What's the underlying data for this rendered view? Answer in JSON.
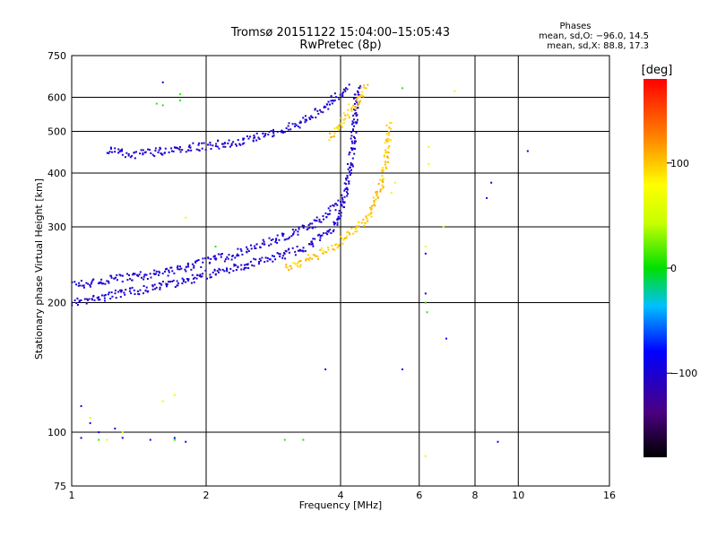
{
  "chart_data": {
    "type": "scatter",
    "title": "Tromsø 20151122 15:04:00–15:05:43",
    "subtitle": "RwPretec (8p)",
    "xlabel": "Frequency [MHz]",
    "ylabel": "Stationary phase Virtual Height [km]",
    "x_scale": "log",
    "y_scale": "log",
    "xlim": [
      1,
      16
    ],
    "ylim": [
      75,
      750
    ],
    "x_ticks": [
      1,
      2,
      4,
      6,
      8,
      10,
      16
    ],
    "x_tick_labels": [
      "1",
      "2",
      "4",
      "6",
      "8",
      "10",
      "16"
    ],
    "x_grid": [
      2,
      4,
      6,
      8,
      10
    ],
    "y_ticks": [
      75,
      100,
      200,
      300,
      400,
      500,
      600,
      750
    ],
    "y_tick_labels": [
      "75",
      "100",
      "200",
      "300",
      "400",
      "500",
      "600",
      "750"
    ],
    "y_grid": [
      100,
      200,
      300,
      400,
      500,
      600
    ],
    "grid": true,
    "stats": {
      "heading": "Phases",
      "line_o": "mean, sd,O: −96.0, 14.5",
      "line_x": "mean, sd,X:  88.8, 17.3"
    },
    "colorbar": {
      "label": "[deg]",
      "range": [
        -180,
        180
      ],
      "ticks": [
        100,
        0,
        -100
      ],
      "tick_labels": [
        "100",
        "0",
        "−100"
      ],
      "placement": "right"
    },
    "trace_groups": [
      {
        "mode": "O",
        "color_phase": -100,
        "points": [
          [
            1.0,
            200
          ],
          [
            1.1,
            203
          ],
          [
            1.2,
            207
          ],
          [
            1.3,
            210
          ],
          [
            1.4,
            213
          ],
          [
            1.5,
            216
          ],
          [
            1.6,
            219
          ],
          [
            1.7,
            222
          ],
          [
            1.8,
            225
          ],
          [
            1.9,
            228
          ],
          [
            2.0,
            232
          ],
          [
            2.2,
            237
          ],
          [
            2.4,
            242
          ],
          [
            2.6,
            248
          ],
          [
            2.8,
            254
          ],
          [
            3.0,
            259
          ],
          [
            3.2,
            265
          ],
          [
            3.4,
            272
          ],
          [
            3.6,
            282
          ],
          [
            3.8,
            295
          ],
          [
            3.9,
            305
          ],
          [
            4.0,
            320
          ],
          [
            4.05,
            340
          ],
          [
            4.1,
            360
          ],
          [
            4.15,
            380
          ],
          [
            4.2,
            410
          ],
          [
            4.25,
            450
          ],
          [
            4.3,
            520
          ],
          [
            4.35,
            600
          ],
          [
            4.4,
            640
          ]
        ]
      },
      {
        "mode": "O",
        "color_phase": -100,
        "points": [
          [
            1.0,
            220
          ],
          [
            1.1,
            222
          ],
          [
            1.2,
            225
          ],
          [
            1.3,
            228
          ],
          [
            1.4,
            230
          ],
          [
            1.5,
            232
          ],
          [
            1.6,
            235
          ],
          [
            1.7,
            238
          ],
          [
            1.8,
            242
          ],
          [
            1.9,
            245
          ],
          [
            2.0,
            250
          ],
          [
            2.2,
            255
          ],
          [
            2.4,
            262
          ],
          [
            2.6,
            270
          ],
          [
            2.8,
            278
          ],
          [
            3.0,
            285
          ],
          [
            3.2,
            292
          ],
          [
            3.4,
            300
          ],
          [
            3.6,
            310
          ],
          [
            3.8,
            325
          ],
          [
            4.0,
            345
          ]
        ]
      },
      {
        "mode": "O",
        "color_phase": -100,
        "points": [
          [
            1.2,
            450
          ],
          [
            1.3,
            445
          ],
          [
            1.4,
            442
          ],
          [
            1.5,
            445
          ],
          [
            1.6,
            450
          ],
          [
            1.7,
            455
          ],
          [
            1.8,
            458
          ],
          [
            1.9,
            460
          ],
          [
            2.0,
            462
          ],
          [
            2.2,
            468
          ],
          [
            2.4,
            475
          ],
          [
            2.6,
            485
          ],
          [
            2.8,
            495
          ],
          [
            3.0,
            505
          ],
          [
            3.2,
            520
          ],
          [
            3.4,
            540
          ],
          [
            3.6,
            560
          ],
          [
            3.8,
            585
          ],
          [
            4.0,
            610
          ],
          [
            4.2,
            640
          ]
        ]
      },
      {
        "mode": "X",
        "color_phase": 100,
        "points": [
          [
            3.0,
            240
          ],
          [
            3.2,
            245
          ],
          [
            3.4,
            252
          ],
          [
            3.6,
            260
          ],
          [
            3.8,
            268
          ],
          [
            4.0,
            278
          ],
          [
            4.2,
            288
          ],
          [
            4.4,
            300
          ],
          [
            4.6,
            315
          ],
          [
            4.7,
            330
          ],
          [
            4.8,
            350
          ],
          [
            4.9,
            370
          ],
          [
            5.0,
            400
          ],
          [
            5.05,
            430
          ],
          [
            5.1,
            470
          ],
          [
            5.15,
            520
          ]
        ]
      },
      {
        "mode": "X",
        "color_phase": 100,
        "points": [
          [
            3.8,
            480
          ],
          [
            3.9,
            500
          ],
          [
            4.0,
            520
          ],
          [
            4.2,
            560
          ],
          [
            4.4,
            600
          ],
          [
            4.6,
            640
          ]
        ]
      },
      {
        "mode": "noise",
        "color_phase": -90,
        "points": [
          [
            1.6,
            650
          ],
          [
            1.05,
            115
          ],
          [
            1.1,
            105
          ],
          [
            1.05,
            97
          ],
          [
            1.3,
            97
          ],
          [
            1.5,
            96
          ],
          [
            1.7,
            97
          ],
          [
            1.8,
            95
          ],
          [
            3.7,
            140
          ],
          [
            5.5,
            140
          ],
          [
            6.2,
            260
          ],
          [
            6.2,
            210
          ],
          [
            6.9,
            165
          ],
          [
            8.5,
            350
          ],
          [
            8.7,
            380
          ],
          [
            9.0,
            95
          ],
          [
            10.5,
            450
          ],
          [
            1.15,
            100
          ],
          [
            1.25,
            102
          ]
        ]
      },
      {
        "mode": "noise",
        "color_phase": 60,
        "points": [
          [
            1.1,
            108
          ],
          [
            1.3,
            100
          ],
          [
            1.6,
            118
          ],
          [
            1.7,
            122
          ],
          [
            6.2,
            270
          ],
          [
            6.3,
            460
          ],
          [
            6.3,
            420
          ],
          [
            6.8,
            300
          ],
          [
            7.2,
            620
          ],
          [
            5.2,
            360
          ],
          [
            5.3,
            380
          ],
          [
            6.2,
            88
          ],
          [
            1.8,
            315
          ],
          [
            1.2,
            96
          ]
        ]
      },
      {
        "mode": "noise",
        "color_phase": 10,
        "points": [
          [
            1.55,
            580
          ],
          [
            1.6,
            575
          ],
          [
            1.75,
            610
          ],
          [
            1.75,
            590
          ],
          [
            1.15,
            96
          ],
          [
            1.7,
            96
          ],
          [
            3.0,
            96
          ],
          [
            3.3,
            96
          ],
          [
            2.1,
            270
          ],
          [
            6.2,
            200
          ],
          [
            6.25,
            190
          ],
          [
            5.5,
            630
          ]
        ]
      }
    ]
  }
}
